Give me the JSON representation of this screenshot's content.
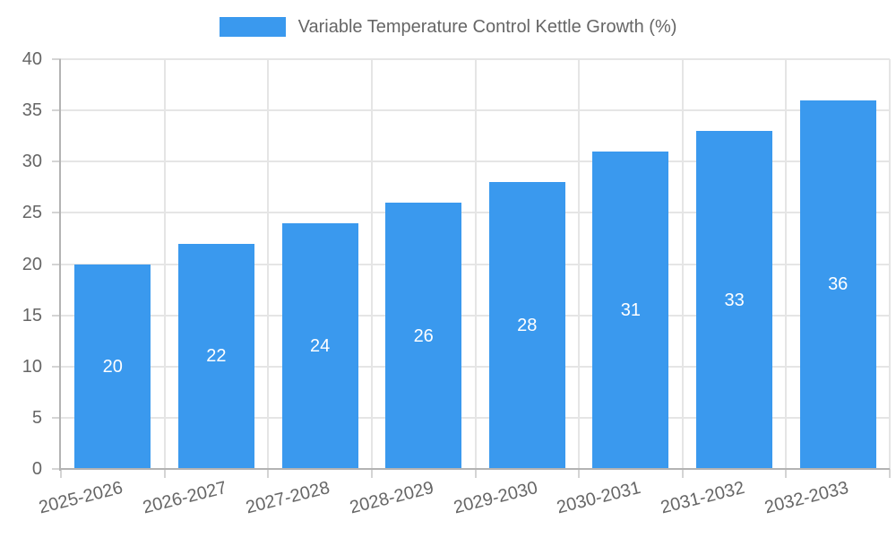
{
  "legend": {
    "label": "Variable Temperature Control Kettle Growth (%)"
  },
  "chart_data": {
    "type": "bar",
    "title": "Variable Temperature Control Kettle Growth (%)",
    "categories": [
      "2025-2026",
      "2026-2027",
      "2027-2028",
      "2028-2029",
      "2029-2030",
      "2030-2031",
      "2031-2032",
      "2032-2033"
    ],
    "values": [
      20,
      22,
      24,
      26,
      28,
      31,
      33,
      36
    ],
    "xlabel": "",
    "ylabel": "",
    "ylim": [
      0,
      40
    ],
    "ytick_step": 5,
    "yticks": [
      0,
      5,
      10,
      15,
      20,
      25,
      30,
      35,
      40
    ],
    "grid": true,
    "legend_position": "top",
    "bar_color": "#3A99EE",
    "value_label_color": "#FFFFFF",
    "axis_text_color": "#666666",
    "grid_color": "#E5E5E5",
    "tick_color": "#D4D4D4",
    "axis_line_color": "#B3B3B3",
    "background_color": "#FFFFFF"
  }
}
